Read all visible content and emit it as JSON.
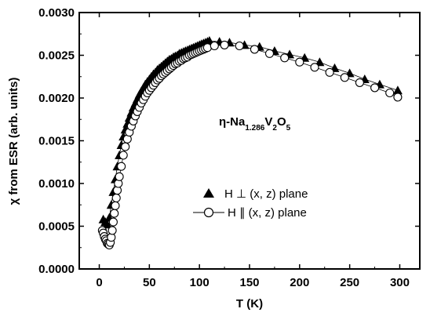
{
  "chart_data": {
    "type": "scatter",
    "xlabel": "T (K)",
    "ylabel": "χ from ESR (arb. units)",
    "xlim": [
      -20,
      320
    ],
    "ylim": [
      0,
      0.003
    ],
    "xticks": [
      "0",
      "50",
      "100",
      "150",
      "200",
      "250",
      "300"
    ],
    "yticks": [
      "0.0000",
      "0.0005",
      "0.0010",
      "0.0015",
      "0.0020",
      "0.0025",
      "0.0030"
    ],
    "annotation": {
      "prefix": "η-Na",
      "sub1": "1.286",
      "mid": "V",
      "sub2": "2",
      "suffix": "O",
      "sub3": "5"
    },
    "legend_position": "center-right",
    "series": [
      {
        "name": "H ⊥ (x, z) plane",
        "marker": "filled-triangle",
        "color": "#000000",
        "points": [
          [
            4,
            0.00058
          ],
          [
            6,
            0.00055
          ],
          [
            8,
            0.00052
          ],
          [
            10,
            0.0006
          ],
          [
            12,
            0.00075
          ],
          [
            14,
            0.0009
          ],
          [
            16,
            0.00105
          ],
          [
            18,
            0.0012
          ],
          [
            20,
            0.00133
          ],
          [
            22,
            0.00145
          ],
          [
            24,
            0.00155
          ],
          [
            26,
            0.00163
          ],
          [
            28,
            0.0017
          ],
          [
            30,
            0.00177
          ],
          [
            32,
            0.00183
          ],
          [
            34,
            0.00189
          ],
          [
            36,
            0.00194
          ],
          [
            38,
            0.00199
          ],
          [
            40,
            0.00204
          ],
          [
            42,
            0.00208
          ],
          [
            44,
            0.00212
          ],
          [
            46,
            0.00216
          ],
          [
            48,
            0.00219
          ],
          [
            50,
            0.00222
          ],
          [
            52,
            0.00225
          ],
          [
            54,
            0.00228
          ],
          [
            56,
            0.0023
          ],
          [
            58,
            0.00233
          ],
          [
            60,
            0.00235
          ],
          [
            62,
            0.00237
          ],
          [
            64,
            0.00239
          ],
          [
            66,
            0.00241
          ],
          [
            68,
            0.00243
          ],
          [
            70,
            0.00245
          ],
          [
            72,
            0.00246
          ],
          [
            74,
            0.00248
          ],
          [
            76,
            0.00249
          ],
          [
            78,
            0.0025
          ],
          [
            80,
            0.00252
          ],
          [
            82,
            0.00253
          ],
          [
            84,
            0.00254
          ],
          [
            86,
            0.00255
          ],
          [
            88,
            0.00256
          ],
          [
            90,
            0.00257
          ],
          [
            92,
            0.00258
          ],
          [
            94,
            0.00259
          ],
          [
            96,
            0.0026
          ],
          [
            98,
            0.00261
          ],
          [
            100,
            0.00262
          ],
          [
            102,
            0.00263
          ],
          [
            104,
            0.00264
          ],
          [
            106,
            0.00265
          ],
          [
            108,
            0.00266
          ],
          [
            110,
            0.00267
          ],
          [
            120,
            0.00266
          ],
          [
            130,
            0.00265
          ],
          [
            145,
            0.00262
          ],
          [
            160,
            0.0026
          ],
          [
            175,
            0.00255
          ],
          [
            190,
            0.00251
          ],
          [
            205,
            0.00247
          ],
          [
            220,
            0.00242
          ],
          [
            235,
            0.00235
          ],
          [
            250,
            0.00229
          ],
          [
            265,
            0.00222
          ],
          [
            280,
            0.00216
          ],
          [
            298,
            0.00209
          ]
        ]
      },
      {
        "name": "H ∥ (x, z) plane",
        "marker": "open-circle",
        "color": "#000000",
        "points": [
          [
            3,
            0.00045
          ],
          [
            4,
            0.00042
          ],
          [
            5,
            0.00038
          ],
          [
            6,
            0.00035
          ],
          [
            7,
            0.00033
          ],
          [
            8,
            0.0003
          ],
          [
            9,
            0.00029
          ],
          [
            10,
            0.00028
          ],
          [
            11,
            0.00031
          ],
          [
            12,
            0.00037
          ],
          [
            13,
            0.00045
          ],
          [
            14,
            0.00055
          ],
          [
            15,
            0.00065
          ],
          [
            16,
            0.00074
          ],
          [
            17,
            0.00083
          ],
          [
            18,
            0.00092
          ],
          [
            19,
            0.001
          ],
          [
            20,
            0.00108
          ],
          [
            22,
            0.0012
          ],
          [
            24,
            0.00133
          ],
          [
            26,
            0.00143
          ],
          [
            28,
            0.00152
          ],
          [
            30,
            0.0016
          ],
          [
            32,
            0.00167
          ],
          [
            34,
            0.00173
          ],
          [
            36,
            0.00179
          ],
          [
            38,
            0.00184
          ],
          [
            40,
            0.00189
          ],
          [
            42,
            0.00194
          ],
          [
            44,
            0.00198
          ],
          [
            46,
            0.00202
          ],
          [
            48,
            0.00206
          ],
          [
            50,
            0.00209
          ],
          [
            52,
            0.00212
          ],
          [
            54,
            0.00215
          ],
          [
            56,
            0.00218
          ],
          [
            58,
            0.00221
          ],
          [
            60,
            0.00223
          ],
          [
            62,
            0.00226
          ],
          [
            64,
            0.00228
          ],
          [
            66,
            0.0023
          ],
          [
            68,
            0.00232
          ],
          [
            70,
            0.00234
          ],
          [
            72,
            0.00236
          ],
          [
            74,
            0.00238
          ],
          [
            76,
            0.0024
          ],
          [
            78,
            0.00241
          ],
          [
            80,
            0.00243
          ],
          [
            82,
            0.00244
          ],
          [
            84,
            0.00246
          ],
          [
            86,
            0.00247
          ],
          [
            88,
            0.00248
          ],
          [
            90,
            0.0025
          ],
          [
            92,
            0.00251
          ],
          [
            94,
            0.00252
          ],
          [
            96,
            0.00253
          ],
          [
            98,
            0.00254
          ],
          [
            100,
            0.00255
          ],
          [
            102,
            0.00256
          ],
          [
            104,
            0.00257
          ],
          [
            106,
            0.00258
          ],
          [
            108,
            0.00259
          ],
          [
            115,
            0.00261
          ],
          [
            125,
            0.00262
          ],
          [
            140,
            0.00261
          ],
          [
            155,
            0.00257
          ],
          [
            170,
            0.00252
          ],
          [
            185,
            0.00247
          ],
          [
            200,
            0.00242
          ],
          [
            215,
            0.00236
          ],
          [
            230,
            0.0023
          ],
          [
            245,
            0.00224
          ],
          [
            260,
            0.00218
          ],
          [
            275,
            0.00212
          ],
          [
            290,
            0.00206
          ],
          [
            298,
            0.00201
          ]
        ]
      }
    ]
  }
}
